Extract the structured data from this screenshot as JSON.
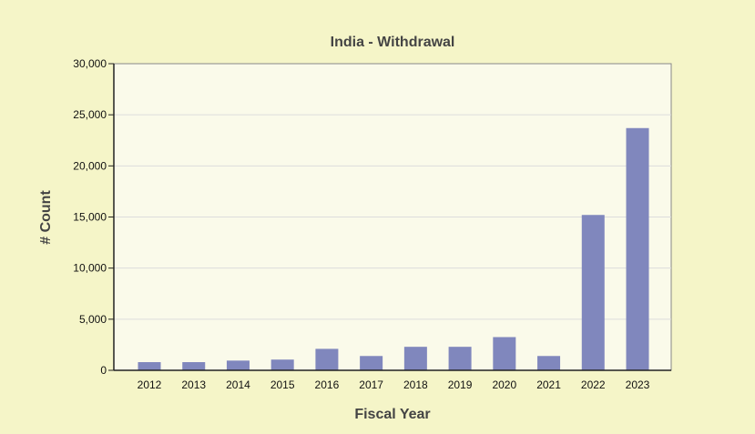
{
  "chart_data": {
    "type": "bar",
    "title": "India - Withdrawal",
    "xlabel": "Fiscal Year",
    "ylabel": "# Count",
    "categories": [
      "2012",
      "2013",
      "2014",
      "2015",
      "2016",
      "2017",
      "2018",
      "2019",
      "2020",
      "2021",
      "2022",
      "2023"
    ],
    "values": [
      800,
      800,
      950,
      1050,
      2100,
      1400,
      2300,
      2300,
      3250,
      1400,
      15200,
      23700
    ],
    "ylim": [
      0,
      30000
    ],
    "yticks": [
      0,
      5000,
      10000,
      15000,
      20000,
      25000,
      30000
    ],
    "ytick_labels": [
      "0",
      "5,000",
      "10,000",
      "15,000",
      "20,000",
      "25,000",
      "30,000"
    ],
    "grid": true,
    "legend": "none",
    "colors": {
      "bar": "#8087bd",
      "plot_bg": "#fafaea",
      "page_bg": "#f5f5c8",
      "grid": "#dcdcdc"
    }
  }
}
